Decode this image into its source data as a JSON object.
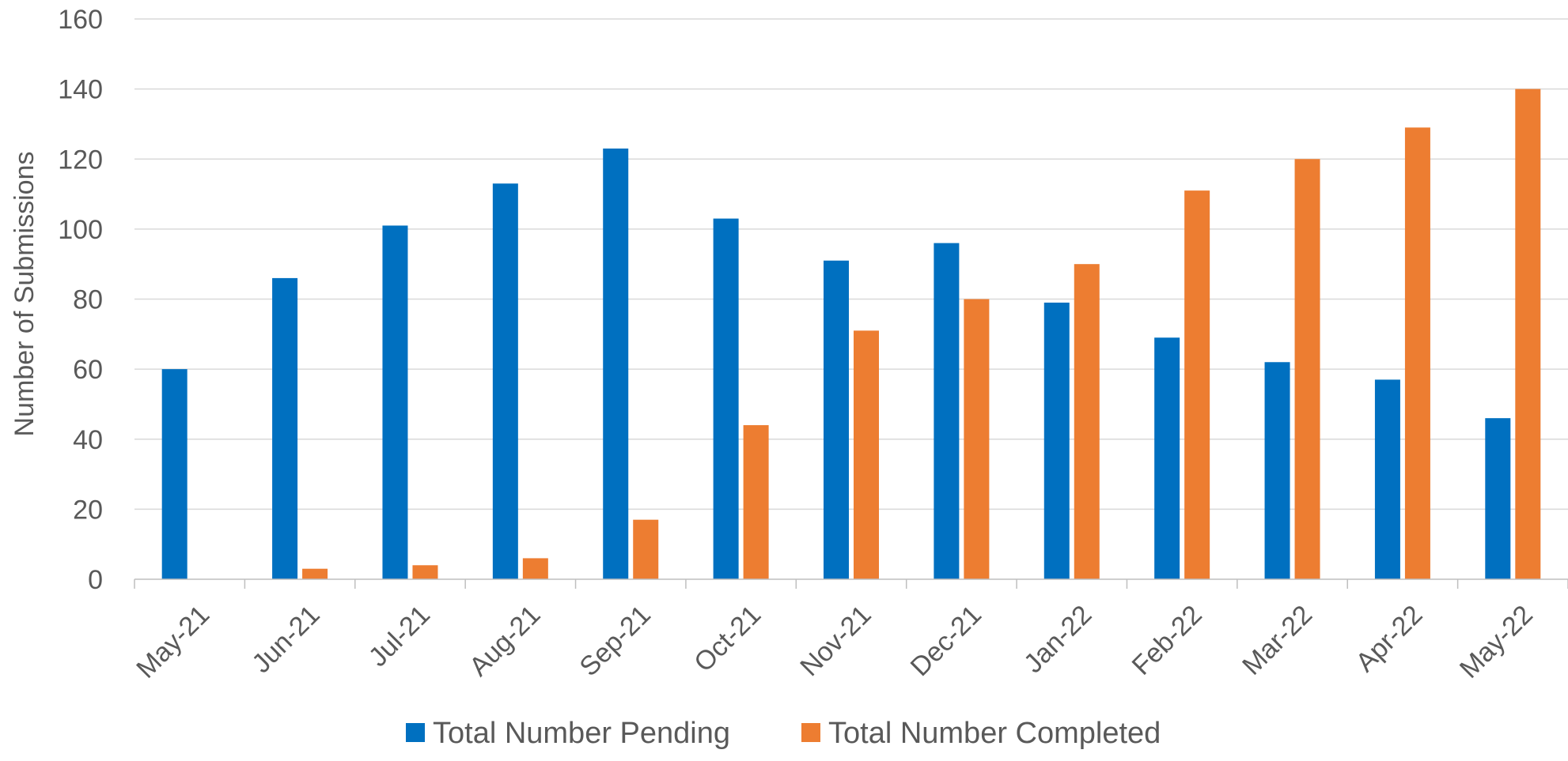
{
  "chart_data": {
    "type": "bar",
    "title": "",
    "xlabel": "",
    "ylabel": "Number of Submissions",
    "ylim": [
      0,
      160
    ],
    "ytick_step": 20,
    "grid": true,
    "legend_position": "bottom",
    "categories": [
      "May-21",
      "Jun-21",
      "Jul-21",
      "Aug-21",
      "Sep-21",
      "Oct-21",
      "Nov-21",
      "Dec-21",
      "Jan-22",
      "Feb-22",
      "Mar-22",
      "Apr-22",
      "May-22"
    ],
    "series": [
      {
        "name": "Total Number Pending",
        "color": "#0070C0",
        "values": [
          60,
          86,
          101,
          113,
          123,
          103,
          91,
          96,
          79,
          69,
          62,
          57,
          46
        ]
      },
      {
        "name": "Total Number Completed",
        "color": "#ED7D31",
        "values": [
          0,
          3,
          4,
          6,
          17,
          44,
          71,
          80,
          90,
          111,
          120,
          129,
          140
        ]
      }
    ]
  }
}
